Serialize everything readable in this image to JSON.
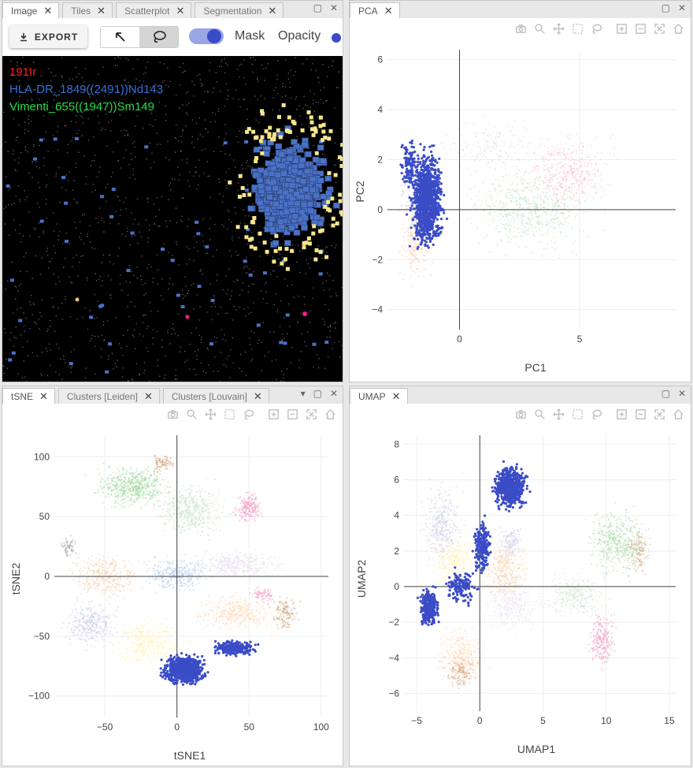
{
  "image_panel": {
    "tabs": [
      "Image",
      "Tiles",
      "Scatterplot",
      "Segmentation"
    ],
    "export_label": "EXPORT",
    "mask_label": "Mask",
    "opacity_label": "Opacity",
    "channels": [
      {
        "name": "191Ir",
        "color": "#ff1a1a"
      },
      {
        "name": "HLA-DR_1849((2491))Nd143",
        "color": "#3a6fd8"
      },
      {
        "name": "Vimenti_655((1947))Sm149",
        "color": "#22dd44"
      }
    ]
  },
  "pca_panel": {
    "tabs": [
      "PCA"
    ],
    "chart_data": {
      "type": "scatter",
      "xlabel": "PC1",
      "ylabel": "PC2",
      "xticks": [
        0,
        5
      ],
      "yticks": [
        6,
        4,
        2,
        0,
        -2,
        -4
      ],
      "xlim": [
        -3,
        9
      ],
      "ylim": [
        -4.8,
        6.4
      ],
      "highlight_color": "#3a4cc6",
      "highlight_region": {
        "x": [
          -2.5,
          0
        ],
        "y": [
          -2.4,
          3.9
        ]
      }
    }
  },
  "tsne_panel": {
    "tabs": [
      "tSNE",
      "Clusters [Leiden]",
      "Clusters [Louvain]"
    ],
    "chart_data": {
      "type": "scatter",
      "xlabel": "tSNE1",
      "ylabel": "tSNE2",
      "xticks": [
        -50,
        0,
        50,
        100
      ],
      "yticks": [
        100,
        50,
        0,
        -50,
        -100
      ],
      "xlim": [
        -85,
        105
      ],
      "ylim": [
        -118,
        118
      ],
      "highlight_color": "#3a4cc6",
      "highlight_region": {
        "x": [
          -18,
          60
        ],
        "y": [
          -98,
          -48
        ]
      }
    }
  },
  "umap_panel": {
    "tabs": [
      "UMAP"
    ],
    "chart_data": {
      "type": "scatter",
      "xlabel": "UMAP1",
      "ylabel": "UMAP2",
      "xticks": [
        -5,
        0,
        5,
        10,
        15
      ],
      "yticks": [
        8,
        6,
        4,
        2,
        0,
        -2,
        -4,
        -6
      ],
      "xlim": [
        -6,
        15.5
      ],
      "ylim": [
        -7,
        8.5
      ],
      "highlight_color": "#3a4cc6",
      "highlight_region": {
        "x": [
          -5,
          6
        ],
        "y": [
          -3,
          8
        ]
      }
    }
  },
  "modebar_icons": [
    "camera-icon",
    "zoom-icon",
    "pan-icon",
    "box-select-icon",
    "lasso-icon",
    "zoom-in-icon",
    "zoom-out-icon",
    "autoscale-icon",
    "reset-axes-icon"
  ],
  "cluster_colors": [
    "#9ed69e",
    "#f4a6c8",
    "#f6c9a0",
    "#c7c7e8",
    "#a8c8e8",
    "#fff3b0",
    "#d0a27a",
    "#e8e0f0",
    "#b0b0b0",
    "#f0c0d8",
    "#c9e6c9",
    "#ffd6b3"
  ]
}
